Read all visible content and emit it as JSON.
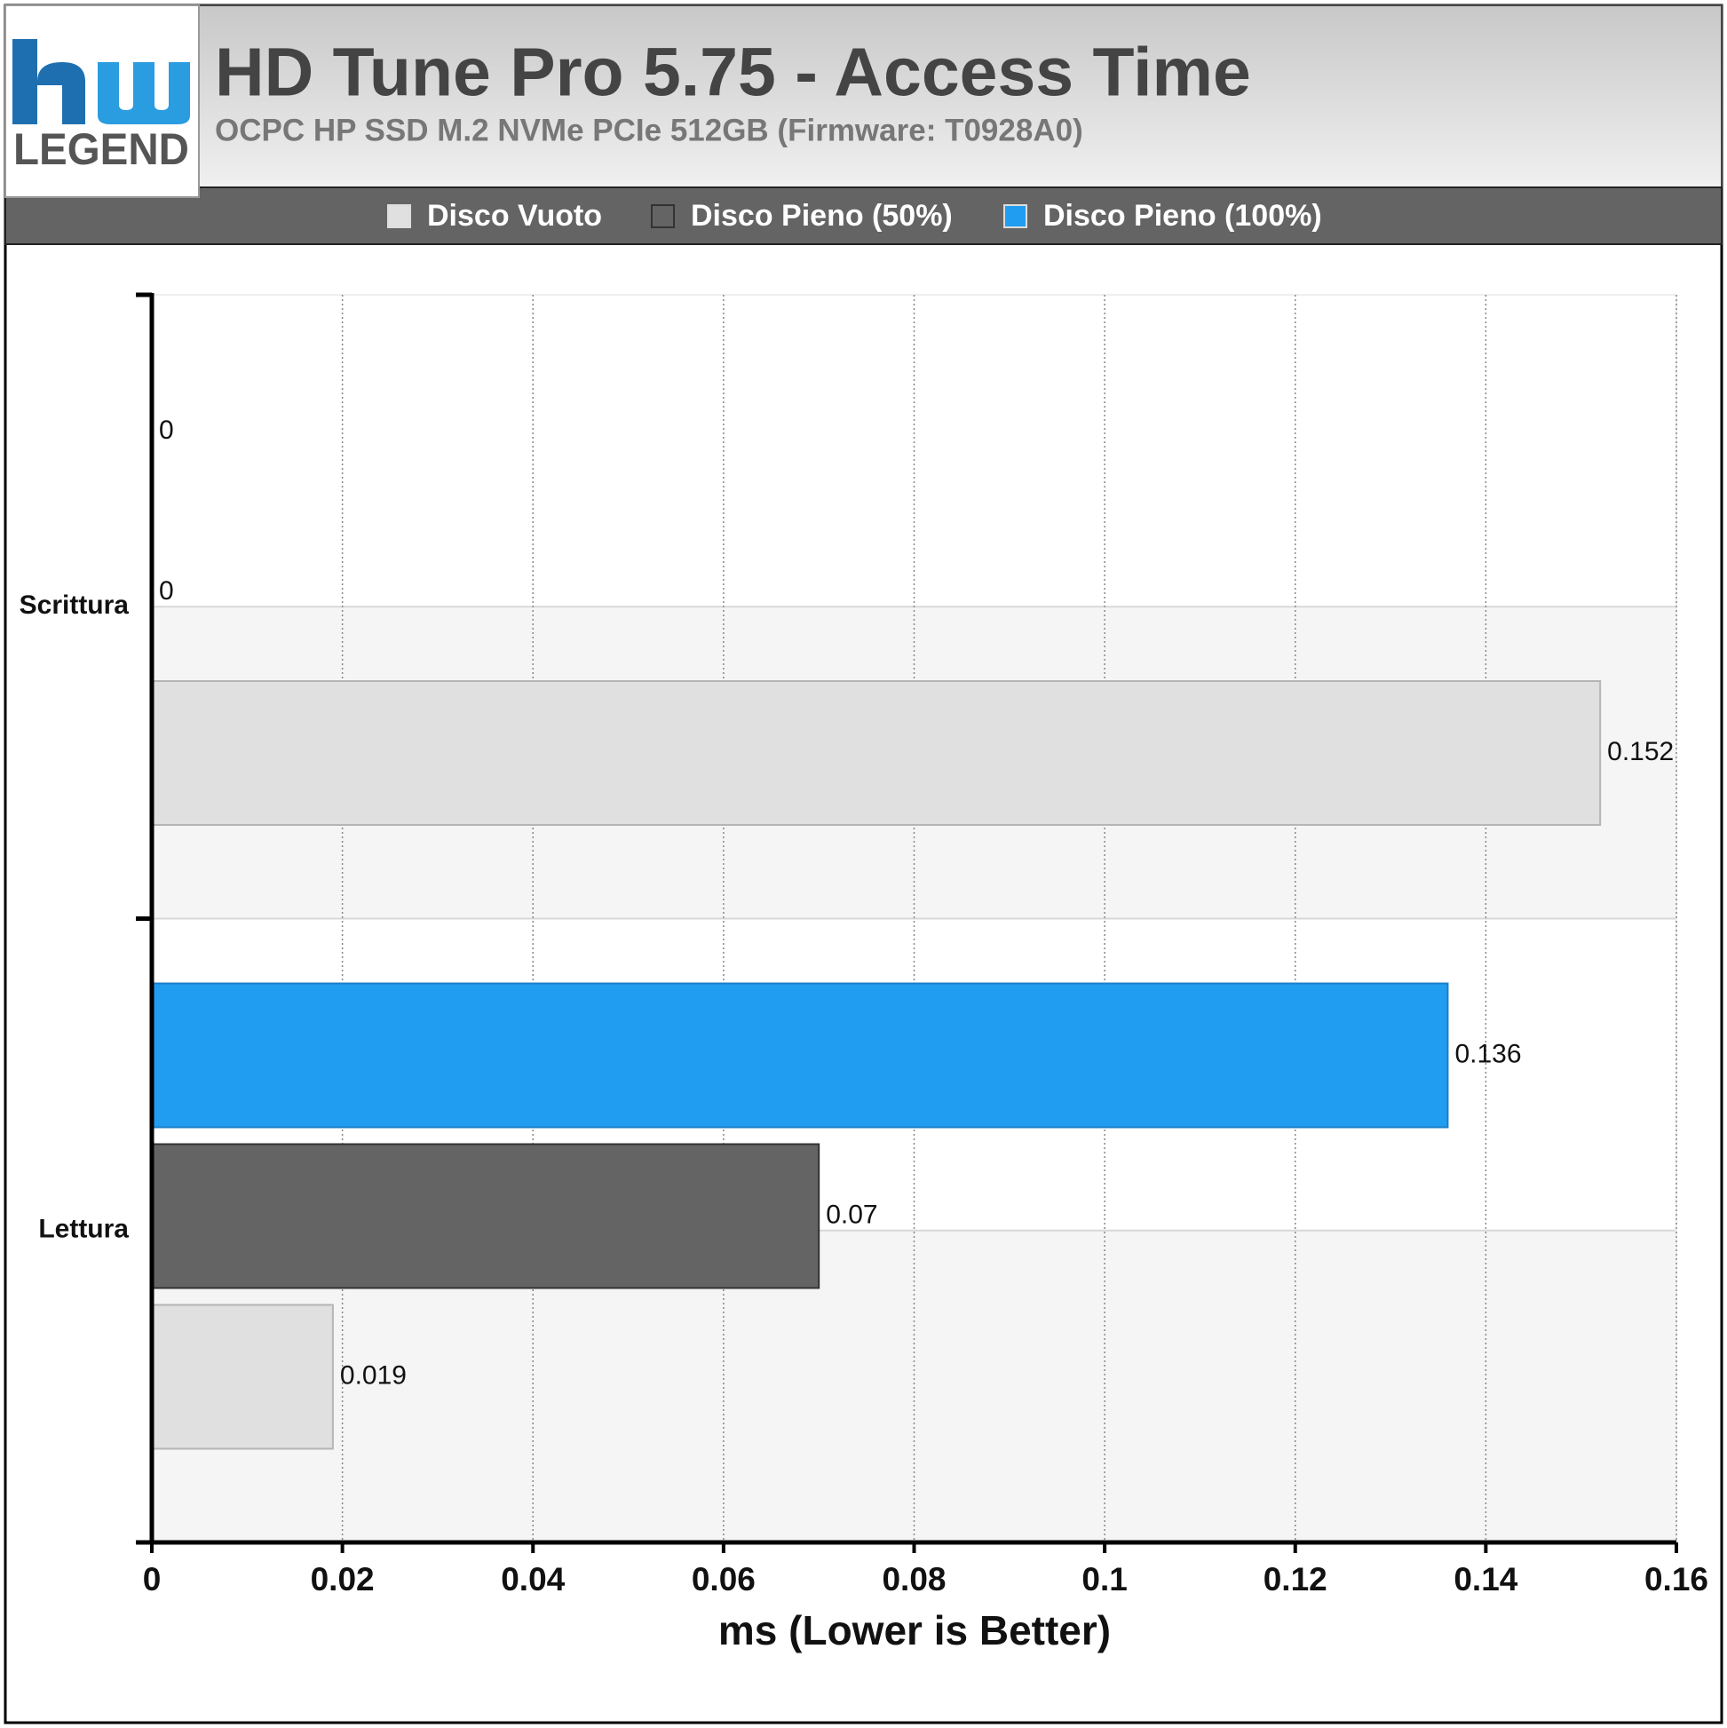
{
  "logo": {
    "text": "LEGEND"
  },
  "chart_data": {
    "type": "hbar",
    "title": "HD Tune Pro 5.75 - Access Time",
    "subtitle": "OCPC HP SSD M.2 NVMe PCIe 512GB (Firmware: T0928A0)",
    "x_label": "ms (Lower is Better)",
    "categories": [
      "Scrittura",
      "Lettura"
    ],
    "series": [
      {
        "name": "Disco Vuoto",
        "color": "#e0e0e0",
        "values": [
          0.152,
          0.019
        ]
      },
      {
        "name": "Disco Pieno (50%)",
        "color": "#646464",
        "values": [
          0,
          0.07
        ]
      },
      {
        "name": "Disco Pieno (100%)",
        "color": "#209df0",
        "values": [
          0,
          0.136
        ]
      }
    ],
    "xlim": [
      0,
      0.16
    ],
    "xticks": [
      0,
      0.02,
      0.04,
      0.06,
      0.08,
      0.1,
      0.12,
      0.14,
      0.16
    ],
    "grid": true
  }
}
